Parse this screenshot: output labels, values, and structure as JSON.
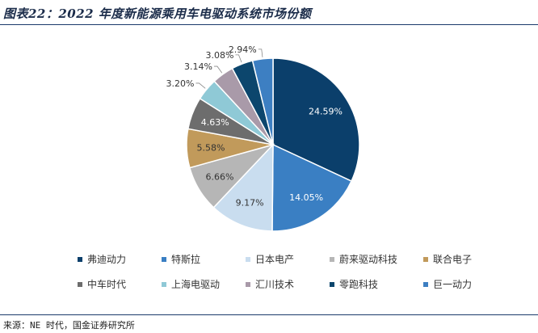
{
  "title": "图表22：2022 年度新能源乘用车电驱动系统市场份额",
  "source": "来源：NE 时代，国金证券研究所",
  "chart_data": {
    "type": "pie",
    "title": "",
    "series": [
      {
        "name": "弗迪动力",
        "value": 24.59,
        "label": "24.59%",
        "color": "#0b3f6b"
      },
      {
        "name": "特斯拉",
        "value": 14.05,
        "label": "14.05%",
        "color": "#3a7fc3"
      },
      {
        "name": "日本电产",
        "value": 9.17,
        "label": "9.17%",
        "color": "#c9ddef"
      },
      {
        "name": "蔚来驱动科技",
        "value": 6.66,
        "label": "6.66%",
        "color": "#b6b6b6"
      },
      {
        "name": "联合电子",
        "value": 5.58,
        "label": "5.58%",
        "color": "#c19a5b"
      },
      {
        "name": "中车时代",
        "value": 4.63,
        "label": "4.63%",
        "color": "#6d6d6d"
      },
      {
        "name": "上海电驱动",
        "value": 3.2,
        "label": "3.20%",
        "color": "#8fc9d6"
      },
      {
        "name": "汇川技术",
        "value": 3.14,
        "label": "3.14%",
        "color": "#a99aa9"
      },
      {
        "name": "零跑科技",
        "value": 3.08,
        "label": "3.08%",
        "color": "#0c466d"
      },
      {
        "name": "巨一动力",
        "value": 2.94,
        "label": "2.94%",
        "color": "#3d7fc2"
      }
    ],
    "legend_position": "bottom"
  }
}
